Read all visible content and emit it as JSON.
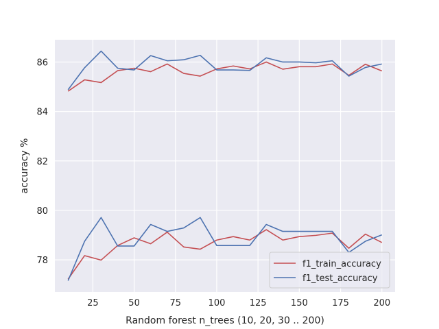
{
  "chart_data": {
    "type": "line",
    "xlabel": "Random forest n_trees (10, 20, 30 .. 200)",
    "ylabel": "accuracy %",
    "xlim": [
      2,
      208
    ],
    "ylim": [
      76.7,
      86.9
    ],
    "xticks": [
      25,
      50,
      75,
      100,
      125,
      150,
      175,
      200
    ],
    "yticks": [
      78,
      80,
      82,
      84,
      86
    ],
    "grid": true,
    "legend_position": "lower-right",
    "x": [
      10,
      20,
      30,
      40,
      50,
      60,
      70,
      80,
      90,
      100,
      110,
      120,
      130,
      140,
      150,
      160,
      170,
      180,
      190,
      200
    ],
    "series": [
      {
        "name": "f1_train_accuracy",
        "color": "#c44e52",
        "values": [
          84.82,
          85.28,
          85.17,
          85.65,
          85.75,
          85.61,
          85.92,
          85.54,
          85.43,
          85.72,
          85.84,
          85.72,
          86.0,
          85.71,
          85.81,
          85.81,
          85.92,
          85.46,
          85.91,
          85.64
        ]
      },
      {
        "name": "f1_test_accuracy",
        "color": "#4c72b0",
        "values": [
          84.88,
          85.77,
          86.44,
          85.75,
          85.68,
          86.26,
          86.05,
          86.09,
          86.27,
          85.68,
          85.68,
          85.66,
          86.17,
          86.0,
          86.0,
          85.97,
          86.05,
          85.43,
          85.78,
          85.92
        ]
      },
      {
        "name": "",
        "color": "#c44e52",
        "values": [
          77.22,
          78.17,
          77.99,
          78.58,
          78.89,
          78.65,
          79.12,
          78.52,
          78.43,
          78.8,
          78.94,
          78.8,
          79.22,
          78.8,
          78.94,
          78.99,
          79.08,
          78.47,
          79.04,
          78.7
        ]
      },
      {
        "name": "",
        "color": "#4c72b0",
        "values": [
          77.16,
          78.75,
          79.71,
          78.56,
          78.56,
          79.43,
          79.15,
          79.29,
          79.71,
          78.58,
          78.58,
          78.58,
          79.43,
          79.15,
          79.15,
          79.15,
          79.15,
          78.3,
          78.75,
          79.01
        ]
      }
    ]
  }
}
